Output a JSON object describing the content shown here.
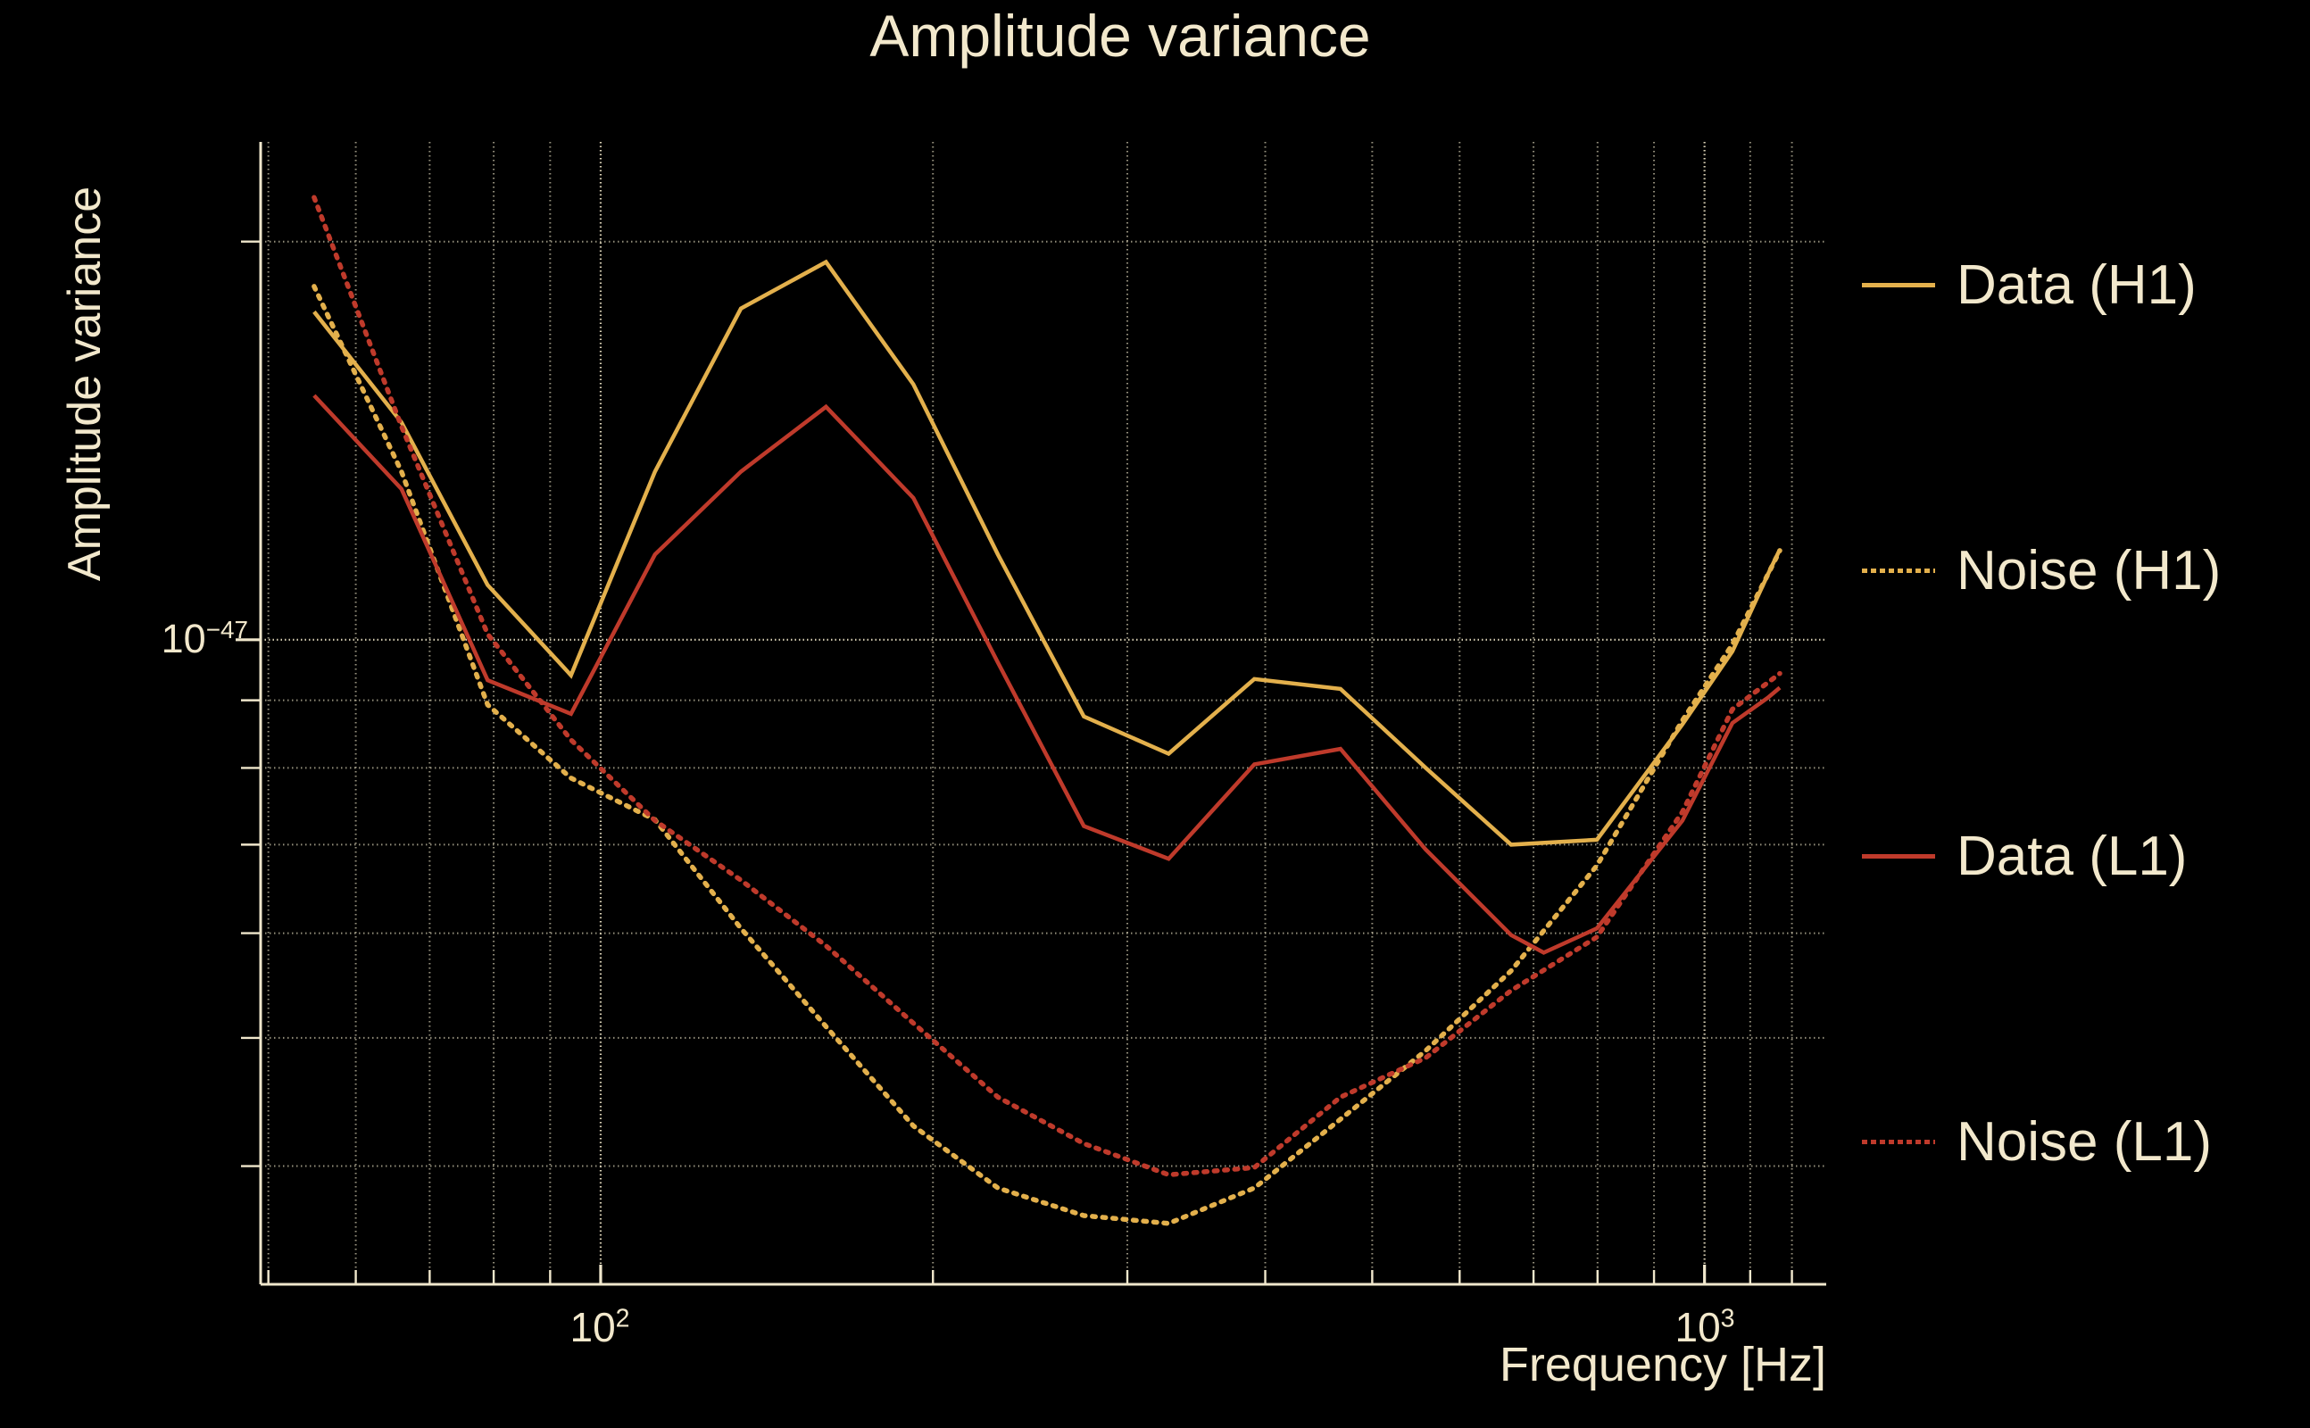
{
  "title": "Amplitude variance",
  "colors": {
    "background": "#000000",
    "text": "#f2e8cc",
    "grid": "#efe6c8",
    "h1_gold": "#e3b04c",
    "l1_red": "#bf3a2b"
  },
  "axes": {
    "xlabel": "Frequency [Hz]",
    "ylabel": "Amplitude variance",
    "x_ticks": [
      {
        "label": "10^2",
        "value": 100
      },
      {
        "label": "10^3",
        "value": 1000
      }
    ],
    "y_ticks": [
      {
        "label": "10^-47",
        "value": 1e-47
      }
    ]
  },
  "legend": {
    "items": [
      {
        "label": "Data (H1)",
        "series": 0
      },
      {
        "label": "Noise (H1)",
        "series": 1
      },
      {
        "label": "Data (L1)",
        "series": 2
      },
      {
        "label": "Noise (L1)",
        "series": 3
      }
    ]
  },
  "chart_data": {
    "type": "line",
    "title": "Amplitude variance",
    "xlabel": "Frequency [Hz]",
    "ylabel": "Amplitude variance",
    "xscale": "log",
    "yscale": "log",
    "xlim": [
      49.2,
      1289
    ],
    "ylim": [
      3.256e-48,
      2.379e-47
    ],
    "grid": true,
    "legend_position": "right",
    "x_major_gridlines": [
      100,
      1000
    ],
    "x_minor_gridlines": [
      50,
      60,
      70,
      80,
      90,
      200,
      300,
      400,
      500,
      600,
      700,
      800,
      900,
      1100,
      1200
    ],
    "y_major_gridlines": [
      1e-47
    ],
    "y_minor_gridlines": [
      2e-47,
      9e-48,
      8e-48,
      7e-48,
      6e-48,
      5e-48,
      4e-48
    ],
    "series": [
      {
        "name": "Data (H1)",
        "color": "#e3b04c",
        "style": "solid",
        "x": [
          55,
          66,
          79,
          94,
          112,
          134,
          160,
          192,
          229,
          274,
          327,
          391,
          468,
          559,
          668,
          799,
          955,
          1060,
          1141,
          1170
        ],
        "y": [
          1.77e-47,
          1.46e-47,
          1.1e-47,
          9.4e-48,
          1.34e-47,
          1.78e-47,
          1.93e-47,
          1.56e-47,
          1.16e-47,
          8.75e-48,
          8.2e-48,
          9.34e-48,
          9.18e-48,
          8e-48,
          7e-48,
          7.06e-48,
          8.63e-48,
          9.8e-48,
          1.12e-47,
          1.17e-47
        ]
      },
      {
        "name": "Noise (H1)",
        "color": "#e3b04c",
        "style": "dotted",
        "x": [
          55,
          66,
          79,
          94,
          112,
          134,
          160,
          192,
          229,
          274,
          327,
          391,
          468,
          559,
          668,
          799,
          955,
          1060,
          1141,
          1170
        ],
        "y": [
          1.85e-47,
          1.34e-47,
          8.93e-48,
          7.86e-48,
          7.31e-48,
          6.05e-48,
          5.1e-48,
          4.29e-48,
          3.85e-48,
          3.67e-48,
          3.62e-48,
          3.85e-48,
          4.34e-48,
          4.89e-48,
          5.62e-48,
          6.75e-48,
          8.69e-48,
          9.92e-48,
          1.12e-47,
          1.168e-47
        ]
      },
      {
        "name": "Data (L1)",
        "color": "#bf3a2b",
        "style": "solid",
        "x": [
          55,
          66,
          79,
          94,
          112,
          134,
          160,
          192,
          229,
          274,
          327,
          391,
          468,
          559,
          668,
          715,
          799,
          955,
          1060,
          1141,
          1170
        ],
        "y": [
          1.53e-47,
          1.3e-47,
          9.32e-48,
          8.79e-48,
          1.16e-47,
          1.34e-47,
          1.5e-47,
          1.28e-47,
          9.61e-48,
          7.23e-48,
          6.83e-48,
          8.05e-48,
          8.27e-48,
          6.94e-48,
          5.98e-48,
          5.8e-48,
          6.05e-48,
          7.3e-48,
          8.65e-48,
          9.04e-48,
          9.2e-48
        ]
      },
      {
        "name": "Noise (L1)",
        "color": "#bf3a2b",
        "style": "dotted",
        "x": [
          55,
          66,
          79,
          94,
          112,
          134,
          160,
          192,
          229,
          274,
          327,
          391,
          468,
          559,
          668,
          799,
          955,
          1060,
          1141,
          1170
        ],
        "y": [
          2.16e-47,
          1.45e-47,
          1.01e-47,
          8.4e-48,
          7.3e-48,
          6.58e-48,
          5.87e-48,
          5.13e-48,
          4.51e-48,
          4.16e-48,
          3.94e-48,
          3.99e-48,
          4.51e-48,
          4.83e-48,
          5.43e-48,
          5.96e-48,
          7.41e-48,
          8.86e-48,
          9.28e-48,
          9.43e-48
        ]
      }
    ]
  }
}
